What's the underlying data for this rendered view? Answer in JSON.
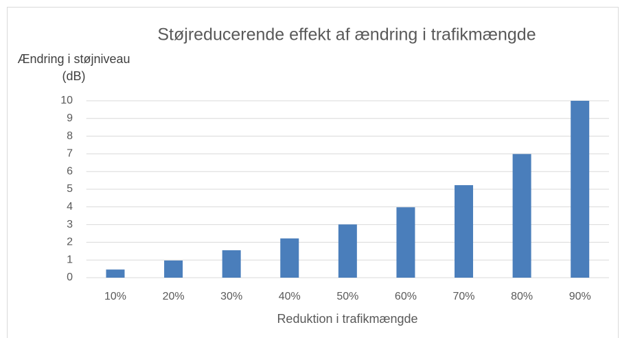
{
  "chart_data": {
    "type": "bar",
    "title": "Støjreducerende effekt af ændring i trafikmængde",
    "y_label": "Ændring i støjniveau (dB)",
    "x_label": "Reduktion i trafikmængde",
    "categories": [
      "10%",
      "20%",
      "30%",
      "40%",
      "50%",
      "60%",
      "70%",
      "80%",
      "90%"
    ],
    "values": [
      0.46,
      0.97,
      1.55,
      2.22,
      3.01,
      3.98,
      5.23,
      6.99,
      10
    ],
    "color": "#4a7ebb",
    "ylim": [
      0,
      10
    ],
    "yticks": [
      0,
      1,
      2,
      3,
      4,
      5,
      6,
      7,
      8,
      9,
      10
    ],
    "grid": true
  }
}
